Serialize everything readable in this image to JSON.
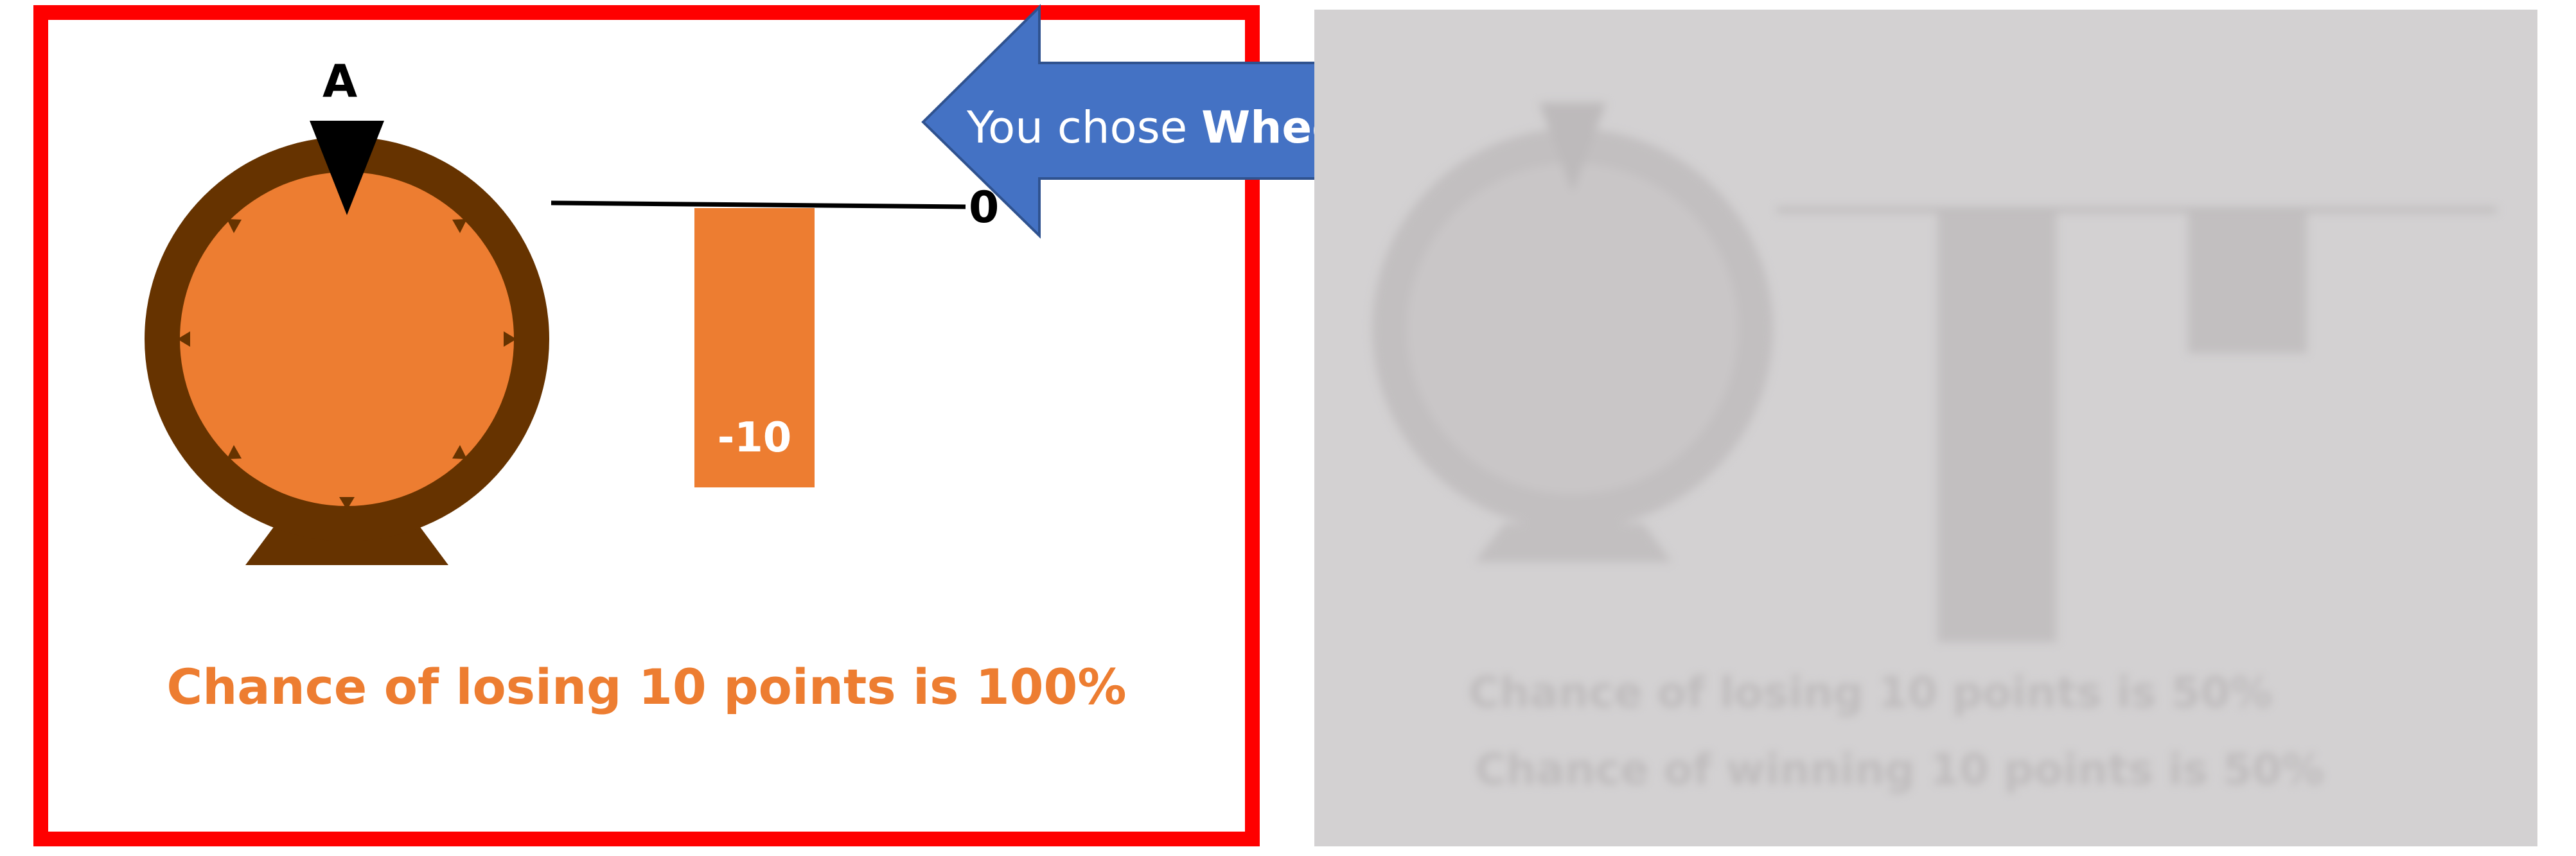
{
  "left_panel": {
    "wheel_label": "A",
    "zero_label": "0",
    "bar_value": "-10",
    "chance_text": "Chance of losing 10 points is 100%"
  },
  "choice_callout": {
    "prefix": "You chose",
    "wheel_name": "Wheel A"
  },
  "right_panel": {
    "blurred_text_line1": "Chance of losing 10 points is 50%",
    "blurred_text_line2": "Chance of winning 10 points is 50%"
  },
  "colors": {
    "frame": "#ff0000",
    "wheel_fill": "#ed7d31",
    "wheel_rim": "#663300",
    "callout": "#4472c4",
    "panel_gray": "#d3d1d2"
  }
}
